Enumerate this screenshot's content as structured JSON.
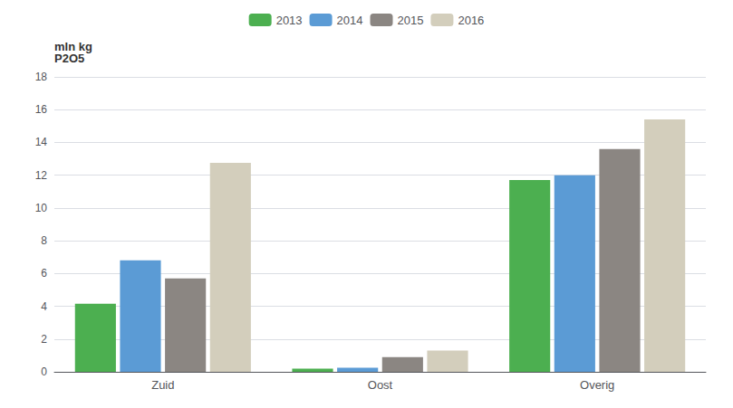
{
  "chart_data": {
    "type": "bar",
    "ylabel": "mln kg\nP2O5",
    "categories": [
      "Zuid",
      "Oost",
      "Overig"
    ],
    "series": [
      {
        "name": "2013",
        "color": "#4CAF50",
        "values": [
          4.15,
          0.2,
          11.7
        ]
      },
      {
        "name": "2014",
        "color": "#5B9BD5",
        "values": [
          6.8,
          0.25,
          12.0
        ]
      },
      {
        "name": "2015",
        "color": "#8B8682",
        "values": [
          5.7,
          0.9,
          13.6
        ]
      },
      {
        "name": "2016",
        "color": "#D3CEBC",
        "values": [
          12.75,
          1.3,
          15.4
        ]
      }
    ],
    "ylim": [
      0,
      18
    ],
    "yticks": [
      0,
      2,
      4,
      6,
      8,
      10,
      12,
      14,
      16,
      18
    ],
    "grid": true,
    "legend": "top"
  }
}
